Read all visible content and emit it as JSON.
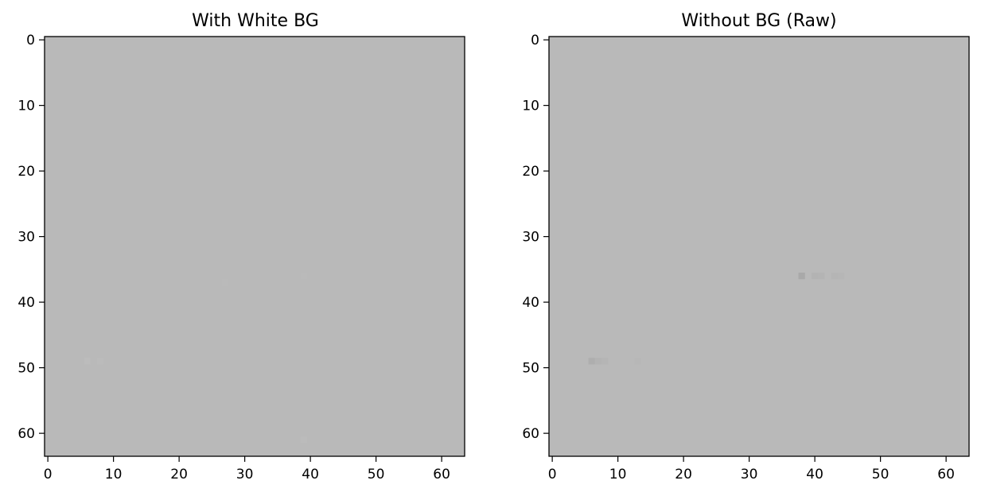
{
  "chart_data": [
    {
      "type": "heatmap",
      "title": "With White BG",
      "xlabel": "",
      "ylabel": "",
      "xlim": [
        -0.5,
        63.5
      ],
      "ylim": [
        63.5,
        -0.5
      ],
      "grid": false,
      "xticks": [
        0,
        10,
        20,
        30,
        40,
        50,
        60
      ],
      "yticks": [
        0,
        10,
        20,
        30,
        40,
        50,
        60
      ],
      "background_color": "#b9b9b9",
      "pixels": [
        {
          "x": 6,
          "y": 49,
          "color": "#bcbcbc"
        },
        {
          "x": 8,
          "y": 49,
          "color": "#bbbbbb"
        },
        {
          "x": 27,
          "y": 37,
          "color": "#bababa"
        },
        {
          "x": 39,
          "y": 36,
          "color": "#bababa"
        },
        {
          "x": 39,
          "y": 61,
          "color": "#bbbbbb"
        }
      ]
    },
    {
      "type": "heatmap",
      "title": "Without BG (Raw)",
      "xlabel": "",
      "ylabel": "",
      "xlim": [
        -0.5,
        63.5
      ],
      "ylim": [
        63.5,
        -0.5
      ],
      "grid": false,
      "xticks": [
        0,
        10,
        20,
        30,
        40,
        50,
        60
      ],
      "yticks": [
        0,
        10,
        20,
        30,
        40,
        50,
        60
      ],
      "background_color": "#b9b9b9",
      "pixels": [
        {
          "x": 38,
          "y": 36,
          "color": "#a9a9a9"
        },
        {
          "x": 40,
          "y": 36,
          "color": "#b3b3b3"
        },
        {
          "x": 41,
          "y": 36,
          "color": "#b4b4b4"
        },
        {
          "x": 43,
          "y": 36,
          "color": "#b5b5b5"
        },
        {
          "x": 44,
          "y": 36,
          "color": "#b6b6b6"
        },
        {
          "x": 6,
          "y": 49,
          "color": "#aeaeae"
        },
        {
          "x": 7,
          "y": 49,
          "color": "#b3b3b3"
        },
        {
          "x": 8,
          "y": 49,
          "color": "#b5b5b5"
        },
        {
          "x": 13,
          "y": 49,
          "color": "#b7b7b7"
        }
      ]
    }
  ]
}
